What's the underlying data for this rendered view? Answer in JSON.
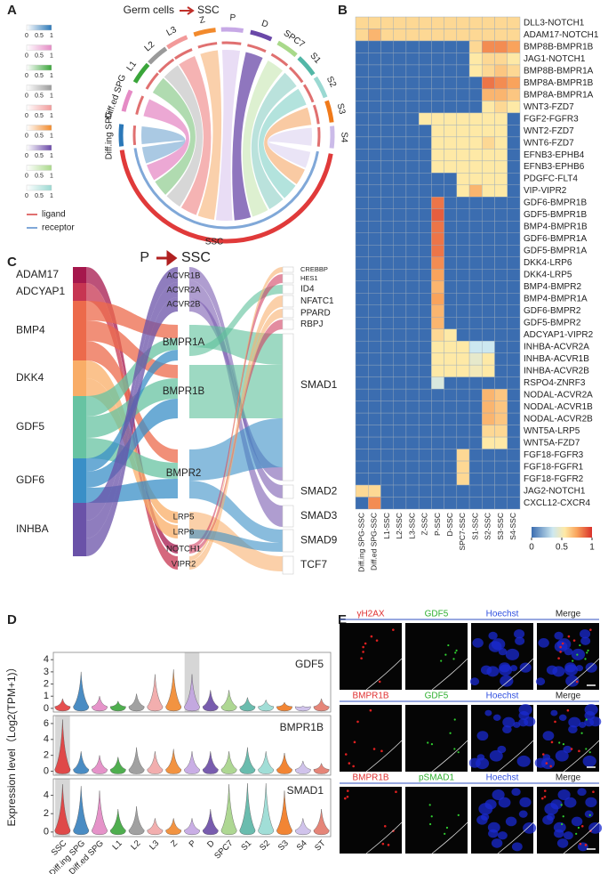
{
  "panel_labels": [
    "A",
    "B",
    "C",
    "D",
    "E"
  ],
  "chord": {
    "title_from": "Germ cells",
    "title_to": "SSC",
    "target": "SSC",
    "sources": [
      "Diff.ing SPG",
      "Diff.ed SPG",
      "L1",
      "L2",
      "L3",
      "Z",
      "P",
      "D",
      "SPC7",
      "S1",
      "S2",
      "S3",
      "S4"
    ],
    "source_colors": [
      "#2b78b8",
      "#e58bc5",
      "#3aa53a",
      "#9a9a9a",
      "#f29a9a",
      "#f28a2c",
      "#c7a9e6",
      "#6a48a8",
      "#a9d98a",
      "#53b7a7",
      "#9ad9d2",
      "#f07a1a",
      "#cbbbe9"
    ],
    "target_color": "#e03a3a",
    "colorbar_colors": [
      "#2b78b8",
      "#e58bc5",
      "#3aa53a",
      "#9a9a9a",
      "#f29a9a",
      "#f28a2c",
      "#6a48a8",
      "#a9d98a",
      "#9ad9d2"
    ],
    "colorbar_ticks": [
      0,
      0.5,
      1
    ],
    "legend": [
      {
        "name": "ligand",
        "color": "#e07070"
      },
      {
        "name": "receptor",
        "color": "#80a8d8"
      }
    ]
  },
  "sankey": {
    "title_from": "P",
    "title_to": "SSC",
    "ligands": [
      "ADAM17",
      "ADCYAP1",
      "BMP4",
      "DKK4",
      "GDF5",
      "GDF6",
      "INHBA"
    ],
    "ligand_colors": [
      "#a5174c",
      "#c73552",
      "#ec6a4b",
      "#f9ad67",
      "#67c3a2",
      "#3a8fc7",
      "#6a52a8"
    ],
    "receptors": [
      "ACVR1B",
      "ACVR2A",
      "ACVR2B",
      "BMPR1A",
      "BMPR1B",
      "BMPR2",
      "LRP5",
      "LRP6",
      "NOTCH1",
      "VIPR2"
    ],
    "targets": [
      "CREBBP",
      "HES1",
      "ID4",
      "NFATC1",
      "PPARD",
      "RBPJ",
      "SMAD1",
      "SMAD2",
      "SMAD3",
      "SMAD9",
      "TCF7"
    ]
  },
  "chart_data": [
    {
      "type": "heatmap",
      "x": [
        "Diff.ing SPG-SSC",
        "Diff.ed SPG-SSC",
        "L1-SSC",
        "L2-SSC",
        "L3-SSC",
        "Z-SSC",
        "P-SSC",
        "D-SSC",
        "SPC7-SSC",
        "S1-SSC",
        "S2-SSC",
        "S3-SSC",
        "S4-SSC"
      ],
      "y": [
        "DLL3-NOTCH1",
        "ADAM17-NOTCH1",
        "BMP8B-BMPR1B",
        "JAG1-NOTCH1",
        "BMP8B-BMPR1A",
        "BMP8A-BMPR1B",
        "BMP8A-BMPR1A",
        "WNT3-FZD7",
        "FGF2-FGFR3",
        "WNT2-FZD7",
        "WNT6-FZD7",
        "EFNB3-EPHB4",
        "EFNB3-EPHB6",
        "PDGFC-FLT4",
        "VIP-VIPR2",
        "GDF6-BMPR1B",
        "GDF5-BMPR1B",
        "BMP4-BMPR1B",
        "GDF6-BMPR1A",
        "GDF5-BMPR1A",
        "DKK4-LRP6",
        "DKK4-LRP5",
        "BMP4-BMPR2",
        "BMP4-BMPR1A",
        "GDF6-BMPR2",
        "GDF5-BMPR2",
        "ADCYAP1-VIPR2",
        "INHBA-ACVR2A",
        "INHBA-ACVR1B",
        "INHBA-ACVR2B",
        "RSPO4-ZNRF3",
        "NODAL-ACVR2A",
        "NODAL-ACVR1B",
        "NODAL-ACVR2B",
        "WNT5A-LRP5",
        "WNT5A-FZD7",
        "FGF18-FGFR3",
        "FGF18-FGFR1",
        "FGF18-FGFR2",
        "JAG2-NOTCH1",
        "CXCL12-CXCR4"
      ],
      "values": [
        [
          0.6,
          0.6,
          0.6,
          0.6,
          0.6,
          0.6,
          0.6,
          0.6,
          0.6,
          0.6,
          0.6,
          0.6,
          0.6
        ],
        [
          0.6,
          0.7,
          0.6,
          0.6,
          0.6,
          0.6,
          0.6,
          0.6,
          0.6,
          0.6,
          0.6,
          0.6,
          0.6
        ],
        [
          0,
          0,
          0,
          0,
          0,
          0,
          0,
          0,
          0,
          0.6,
          0.8,
          0.8,
          0.75
        ],
        [
          0,
          0,
          0,
          0,
          0,
          0,
          0,
          0,
          0,
          0.55,
          0.6,
          0.6,
          0.55
        ],
        [
          0,
          0,
          0,
          0,
          0,
          0,
          0,
          0,
          0,
          0.55,
          0.6,
          0.65,
          0.6
        ],
        [
          0,
          0,
          0,
          0,
          0,
          0,
          0,
          0,
          0,
          0,
          0.85,
          0.8,
          0.75
        ],
        [
          0,
          0,
          0,
          0,
          0,
          0,
          0,
          0,
          0,
          0,
          0.7,
          0.7,
          0.65
        ],
        [
          0,
          0,
          0,
          0,
          0,
          0,
          0,
          0,
          0,
          0,
          0.55,
          0.6,
          0.55
        ],
        [
          0,
          0,
          0,
          0,
          0,
          0.55,
          0.55,
          0.55,
          0.55,
          0.55,
          0.55,
          0.55,
          0
        ],
        [
          0,
          0,
          0,
          0,
          0,
          0,
          0.55,
          0.55,
          0.55,
          0.55,
          0.55,
          0.55,
          0
        ],
        [
          0,
          0,
          0,
          0,
          0,
          0,
          0.55,
          0.55,
          0.55,
          0.55,
          0.6,
          0.55,
          0
        ],
        [
          0,
          0,
          0,
          0,
          0,
          0,
          0.55,
          0.55,
          0.55,
          0.55,
          0.55,
          0.55,
          0
        ],
        [
          0,
          0,
          0,
          0,
          0,
          0,
          0.55,
          0.55,
          0.55,
          0.55,
          0.55,
          0.55,
          0
        ],
        [
          0,
          0,
          0,
          0,
          0,
          0,
          0,
          0,
          0.55,
          0.55,
          0.55,
          0.55,
          0
        ],
        [
          0,
          0,
          0,
          0,
          0,
          0,
          0,
          0,
          0.55,
          0.7,
          0.55,
          0.55,
          0
        ],
        [
          0,
          0,
          0,
          0,
          0,
          0,
          0.85,
          0,
          0,
          0,
          0,
          0,
          0
        ],
        [
          0,
          0,
          0,
          0,
          0,
          0,
          0.9,
          0,
          0,
          0,
          0,
          0,
          0
        ],
        [
          0,
          0,
          0,
          0,
          0,
          0,
          0.85,
          0,
          0,
          0,
          0,
          0,
          0
        ],
        [
          0,
          0,
          0,
          0,
          0,
          0,
          0.85,
          0,
          0,
          0,
          0,
          0,
          0
        ],
        [
          0,
          0,
          0,
          0,
          0,
          0,
          0.85,
          0,
          0,
          0,
          0,
          0,
          0
        ],
        [
          0,
          0,
          0,
          0,
          0,
          0,
          0.8,
          0,
          0,
          0,
          0,
          0,
          0
        ],
        [
          0,
          0,
          0,
          0,
          0,
          0,
          0.75,
          0,
          0,
          0,
          0,
          0,
          0
        ],
        [
          0,
          0,
          0,
          0,
          0,
          0,
          0.7,
          0,
          0,
          0,
          0,
          0,
          0
        ],
        [
          0,
          0,
          0,
          0,
          0,
          0,
          0.75,
          0,
          0,
          0,
          0,
          0,
          0
        ],
        [
          0,
          0,
          0,
          0,
          0,
          0,
          0.7,
          0,
          0,
          0,
          0,
          0,
          0
        ],
        [
          0,
          0,
          0,
          0,
          0,
          0,
          0.7,
          0,
          0,
          0,
          0,
          0,
          0
        ],
        [
          0,
          0,
          0,
          0,
          0,
          0,
          0.6,
          0.55,
          0,
          0,
          0,
          0,
          0
        ],
        [
          0,
          0,
          0,
          0,
          0,
          0,
          0.55,
          0.55,
          0.55,
          0.35,
          0.35,
          0,
          0
        ],
        [
          0,
          0,
          0,
          0,
          0,
          0,
          0.55,
          0.55,
          0.55,
          0.45,
          0.55,
          0,
          0
        ],
        [
          0,
          0,
          0,
          0,
          0,
          0,
          0.55,
          0.55,
          0.55,
          0.5,
          0.55,
          0,
          0
        ],
        [
          0,
          0,
          0,
          0,
          0,
          0,
          0.4,
          0,
          0,
          0,
          0,
          0,
          0
        ],
        [
          0,
          0,
          0,
          0,
          0,
          0,
          0,
          0,
          0,
          0,
          0.7,
          0.65,
          0
        ],
        [
          0,
          0,
          0,
          0,
          0,
          0,
          0,
          0,
          0,
          0,
          0.7,
          0.65,
          0
        ],
        [
          0,
          0,
          0,
          0,
          0,
          0,
          0,
          0,
          0,
          0,
          0.7,
          0.65,
          0
        ],
        [
          0,
          0,
          0,
          0,
          0,
          0,
          0,
          0,
          0,
          0,
          0.6,
          0.6,
          0
        ],
        [
          0,
          0,
          0,
          0,
          0,
          0,
          0,
          0,
          0,
          0,
          0.55,
          0.55,
          0
        ],
        [
          0,
          0,
          0,
          0,
          0,
          0,
          0,
          0,
          0.6,
          0,
          0,
          0,
          0
        ],
        [
          0,
          0,
          0,
          0,
          0,
          0,
          0,
          0,
          0.6,
          0,
          0,
          0,
          0
        ],
        [
          0,
          0,
          0,
          0,
          0,
          0,
          0,
          0,
          0.6,
          0,
          0,
          0,
          0
        ],
        [
          0.6,
          0.6,
          0,
          0,
          0,
          0,
          0,
          0,
          0,
          0,
          0,
          0,
          0
        ],
        [
          0,
          0.8,
          0,
          0,
          0,
          0,
          0,
          0,
          0,
          0,
          0,
          0,
          0
        ]
      ],
      "zlim": [
        0,
        1
      ],
      "zticks": [
        0,
        0.5,
        1
      ],
      "colorscale": [
        [
          0,
          "#3b6db0"
        ],
        [
          0.35,
          "#cde8f0"
        ],
        [
          0.55,
          "#fee9a6"
        ],
        [
          0.75,
          "#f9a35c"
        ],
        [
          1,
          "#d9302a"
        ]
      ]
    },
    {
      "type": "violin",
      "ylabel": "Expression level（Log2(TPM+1)）",
      "categories": [
        "SSC",
        "Diff.ing SPG",
        "Diff.ed SPG",
        "L1",
        "L2",
        "L3",
        "Z",
        "P",
        "D",
        "SPC7",
        "S1",
        "S2",
        "S3",
        "S4",
        "ST"
      ],
      "colors": [
        "#e03030",
        "#2a78b8",
        "#e080c0",
        "#30a030",
        "#909090",
        "#f0a0a0",
        "#f08020",
        "#c0a0e0",
        "#6040a0",
        "#a0d080",
        "#50b0a0",
        "#90d8d0",
        "#f07010",
        "#c8b8e8",
        "#e07060"
      ],
      "series": [
        {
          "name": "GDF5",
          "values": [
            0.8,
            3.0,
            1.0,
            0.6,
            1.2,
            2.8,
            3.2,
            2.8,
            1.5,
            1.5,
            0.9,
            0.7,
            0.5,
            0.2,
            0.8
          ],
          "ylim": [
            -0.3,
            4.6
          ],
          "yticks": [
            0,
            1,
            2,
            3,
            4
          ],
          "highlight": 7
        },
        {
          "name": "BMPR1B",
          "values": [
            6.5,
            2.5,
            2.0,
            1.8,
            3.0,
            2.5,
            2.8,
            2.5,
            2.5,
            2.5,
            3.0,
            2.5,
            2.3,
            1.3,
            1.0
          ],
          "ylim": [
            -0.5,
            7
          ],
          "yticks": [
            0,
            2,
            4,
            6
          ],
          "highlight": 0
        },
        {
          "name": "SMAD1",
          "values": [
            5.2,
            5.0,
            4.5,
            2.5,
            2.8,
            1.5,
            1.5,
            1.5,
            2.5,
            5.2,
            5.3,
            5.3,
            4.5,
            1.5,
            2.5
          ],
          "ylim": [
            -0.5,
            5.8
          ],
          "yticks": [
            0,
            2,
            4
          ],
          "highlight": 0
        }
      ]
    }
  ],
  "micrographs": {
    "rows": [
      [
        "γH2AX",
        "GDF5",
        "Hoechst",
        "Merge"
      ],
      [
        "BMPR1B",
        "GDF5",
        "Hoechst",
        "Merge"
      ],
      [
        "BMPR1B",
        "pSMAD1",
        "Hoechst",
        "Merge"
      ]
    ],
    "label_colors": [
      "#e03030",
      "#30b030",
      "#3050e0",
      "#222222"
    ]
  }
}
